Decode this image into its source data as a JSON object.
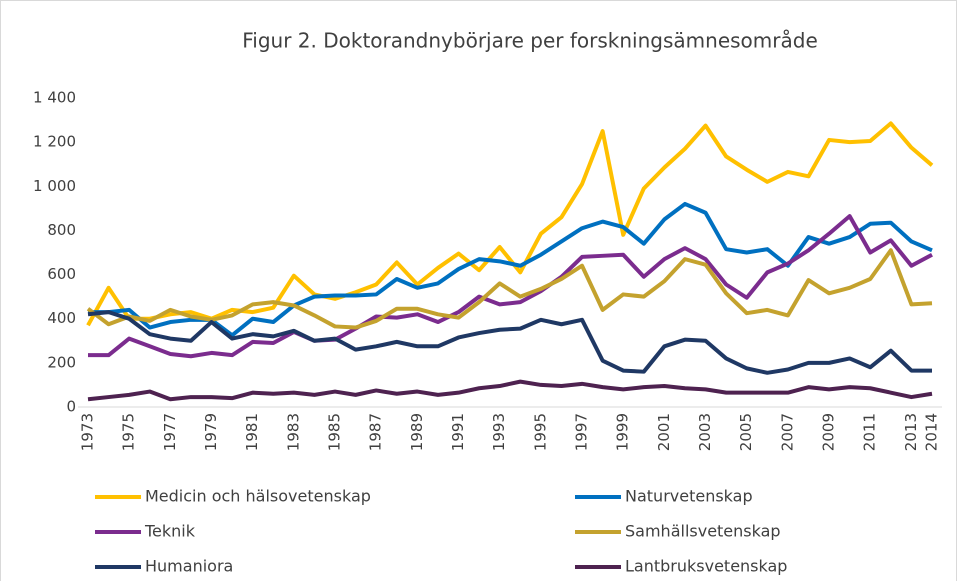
{
  "chart_data": {
    "type": "line",
    "title": "Figur 2. Doktorandnybörjare per forskningsämnesområde",
    "categories": [
      "1973",
      null,
      "1975",
      null,
      "1977",
      null,
      "1979",
      null,
      "1981",
      null,
      "1983",
      null,
      "1985",
      null,
      "1987",
      null,
      "1989",
      null,
      "1991",
      null,
      "1993",
      null,
      "1995",
      null,
      "1997",
      null,
      "1999",
      null,
      "2001",
      null,
      "2003",
      null,
      "2005",
      null,
      "2007",
      null,
      "2009",
      null,
      "2011",
      null,
      "2013",
      "2014"
    ],
    "ylim": [
      0,
      1400
    ],
    "yticks": [
      0,
      200,
      400,
      600,
      800,
      {
        "value": 1000,
        "label": "1 000"
      },
      {
        "value": 1200,
        "label": "1 200"
      },
      {
        "value": 1400,
        "label": "1 400"
      }
    ],
    "grid": false,
    "legend": "bottom",
    "series": [
      {
        "name": "Medicin och hälsovetenskap",
        "color": "#FFC000",
        "values": [
          370,
          540,
          400,
          400,
          420,
          430,
          400,
          440,
          430,
          450,
          595,
          510,
          490,
          520,
          555,
          655,
          555,
          630,
          695,
          620,
          725,
          610,
          785,
          860,
          1010,
          1250,
          780,
          990,
          1085,
          1170,
          1275,
          1135,
          1075,
          1020,
          1065,
          1045,
          1210,
          1200,
          1205,
          1285,
          1175,
          1095
        ]
      },
      {
        "name": "Naturvetenskap",
        "color": "#0070C0",
        "values": [
          430,
          430,
          440,
          360,
          385,
          395,
          395,
          325,
          400,
          385,
          460,
          500,
          505,
          505,
          510,
          580,
          540,
          560,
          625,
          670,
          660,
          640,
          690,
          750,
          810,
          840,
          815,
          740,
          850,
          920,
          880,
          715,
          700,
          715,
          640,
          770,
          740,
          770,
          830,
          835,
          750,
          710
        ]
      },
      {
        "name": "Teknik",
        "color": "#7B2C8E",
        "values": [
          235,
          235,
          310,
          275,
          240,
          230,
          245,
          235,
          295,
          290,
          340,
          300,
          305,
          355,
          410,
          405,
          420,
          385,
          430,
          500,
          465,
          475,
          525,
          590,
          680,
          685,
          690,
          590,
          670,
          720,
          670,
          555,
          495,
          610,
          650,
          710,
          785,
          865,
          700,
          755,
          640,
          690
        ]
      },
      {
        "name": "Samhällsvetenskap",
        "color": "#C4A22E",
        "values": [
          445,
          375,
          410,
          390,
          440,
          410,
          395,
          415,
          465,
          475,
          460,
          415,
          365,
          360,
          390,
          445,
          445,
          420,
          405,
          475,
          560,
          500,
          535,
          580,
          640,
          440,
          510,
          500,
          570,
          670,
          645,
          515,
          425,
          440,
          415,
          575,
          515,
          540,
          580,
          710,
          465,
          470
        ]
      },
      {
        "name": "Humaniora",
        "color": "#1F3864",
        "values": [
          420,
          430,
          400,
          330,
          310,
          300,
          385,
          310,
          330,
          320,
          345,
          300,
          310,
          260,
          275,
          295,
          275,
          275,
          315,
          335,
          350,
          355,
          395,
          375,
          395,
          210,
          165,
          160,
          275,
          305,
          300,
          220,
          175,
          155,
          170,
          200,
          200,
          220,
          180,
          255,
          165,
          165
        ]
      },
      {
        "name": "Lantbruksvetenskap",
        "color": "#4E2250",
        "values": [
          35,
          45,
          55,
          70,
          35,
          45,
          45,
          40,
          65,
          60,
          65,
          55,
          70,
          55,
          75,
          60,
          70,
          55,
          65,
          85,
          95,
          115,
          100,
          95,
          105,
          90,
          80,
          90,
          95,
          85,
          80,
          65,
          65,
          65,
          65,
          90,
          80,
          90,
          85,
          65,
          45,
          60
        ]
      }
    ]
  }
}
